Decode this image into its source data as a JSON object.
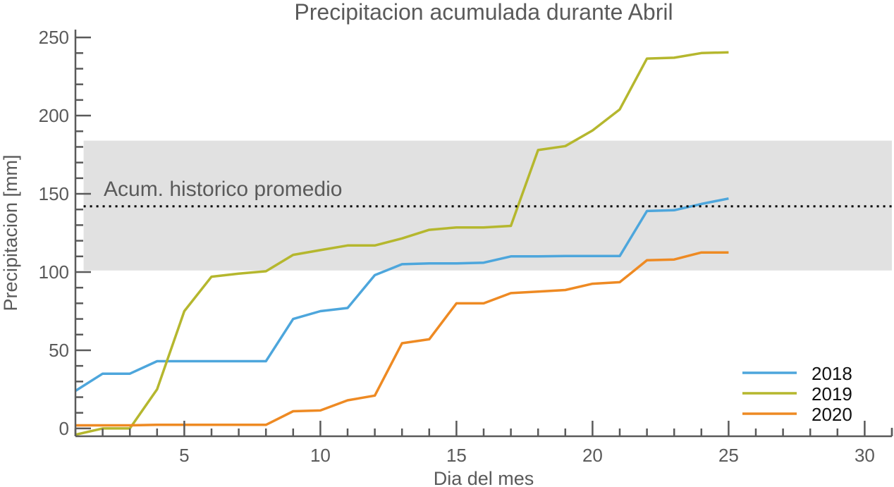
{
  "chart_data": {
    "type": "line",
    "title": "Precipitacion acumulada durante Abril",
    "xlabel": "Dia del mes",
    "ylabel": "Precipitacion [mm]",
    "xlim": [
      1,
      31
    ],
    "ylim": [
      -5,
      255
    ],
    "xticks": [
      5,
      10,
      15,
      20,
      25,
      30
    ],
    "yticks": [
      0,
      50,
      100,
      150,
      200,
      250
    ],
    "grid": false,
    "legend_position": "bottom-right",
    "band": {
      "low": 101,
      "high": 184,
      "color": "#e1e1e1"
    },
    "reference_line": {
      "value": 142,
      "label": "Acum. historico promedio",
      "style": "dotted",
      "color": "#000000"
    },
    "x": [
      1,
      2,
      3,
      4,
      5,
      6,
      7,
      8,
      9,
      10,
      11,
      12,
      13,
      14,
      15,
      16,
      17,
      18,
      19,
      20,
      21,
      22,
      23,
      24,
      25
    ],
    "series": [
      {
        "name": "2018",
        "color": "#4da6dc",
        "values": [
          24,
          35,
          35,
          43,
          43,
          43,
          43,
          43,
          70,
          75,
          77,
          98,
          105,
          105.5,
          105.5,
          106,
          110,
          110,
          110.2,
          110.2,
          110.2,
          139,
          139.5,
          143.5,
          147
        ]
      },
      {
        "name": "2019",
        "color": "#b5b72e",
        "values": [
          -4,
          0,
          0,
          25,
          75,
          97,
          99,
          100.5,
          111,
          114,
          117,
          117,
          121.5,
          127,
          128.5,
          128.5,
          129.5,
          178,
          180.5,
          190.5,
          204,
          236.5,
          237,
          240,
          240.5
        ]
      },
      {
        "name": "2020",
        "color": "#ee8a23",
        "values": [
          2,
          2,
          2,
          2.3,
          2.3,
          2.3,
          2.3,
          2.3,
          11,
          11.5,
          18,
          21,
          54.5,
          57,
          80,
          80,
          86.5,
          87.5,
          88.5,
          92.5,
          93.5,
          107.5,
          108,
          112.5,
          112.5
        ]
      }
    ]
  }
}
